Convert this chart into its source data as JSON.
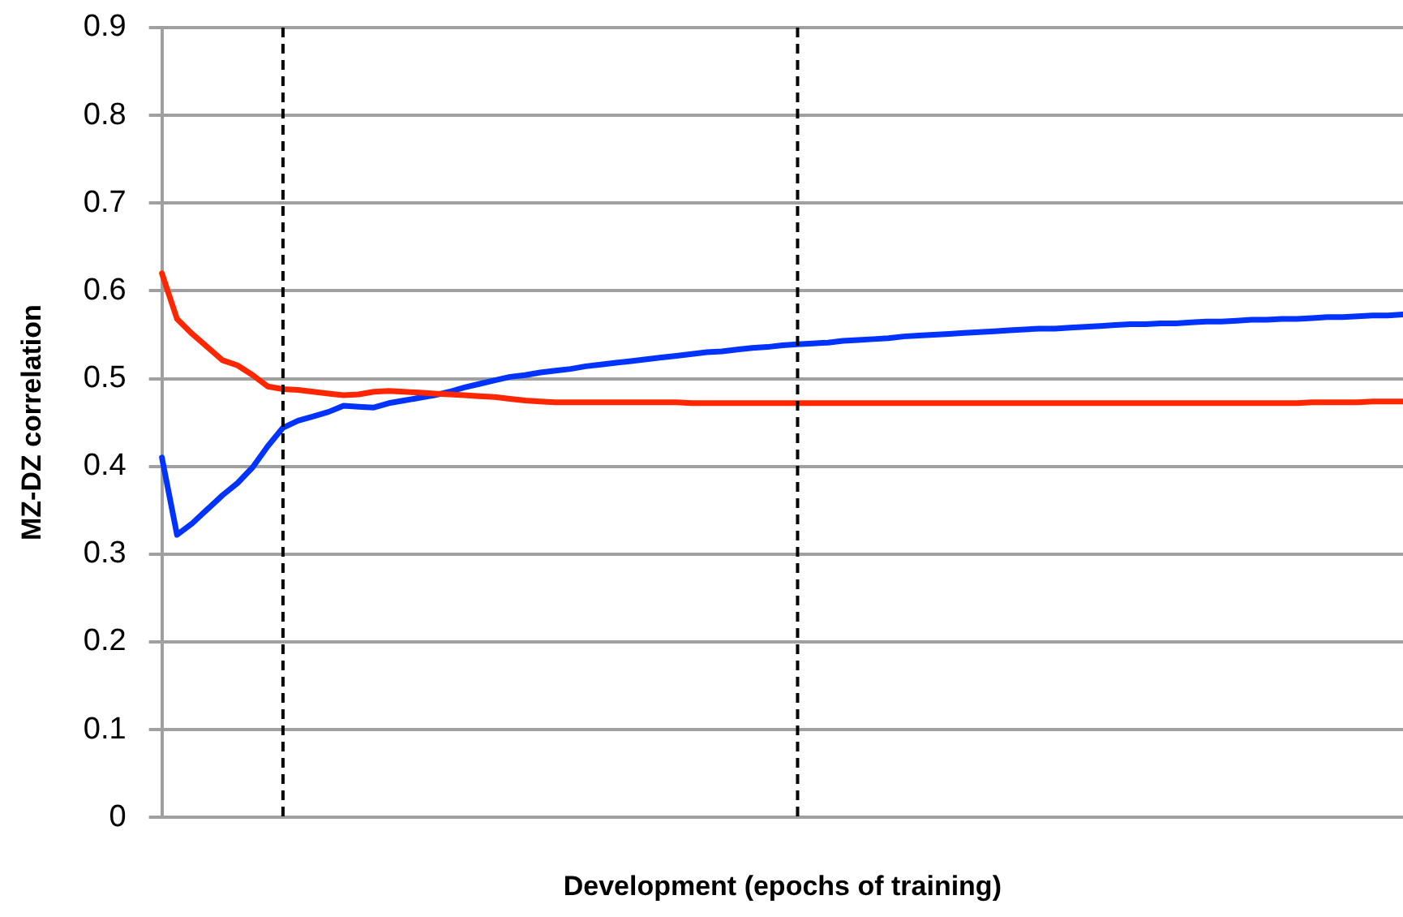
{
  "chart_data": {
    "type": "line",
    "xlabel": "Development (epochs of training)",
    "ylabel": "MZ-DZ correlation",
    "categories": [
      null,
      null,
      null,
      null,
      null,
      null,
      null,
      null,
      null,
      null,
      null,
      null,
      null,
      null,
      null,
      null,
      null,
      null,
      null,
      null,
      null,
      null,
      null,
      null,
      null,
      null,
      null,
      null,
      null,
      null,
      null,
      null,
      null,
      null,
      null,
      null,
      null,
      null,
      null,
      null,
      null,
      null,
      null,
      null,
      null,
      null,
      null,
      null,
      null,
      null,
      null,
      null,
      null,
      null,
      null,
      null,
      null,
      null,
      null,
      null,
      null,
      null,
      null,
      null,
      null,
      null,
      null,
      null,
      null,
      null,
      null,
      null,
      null,
      null,
      null,
      null,
      null,
      null,
      null,
      null,
      null,
      null,
      null
    ],
    "series": [
      {
        "color": "#ff2600",
        "values": [
          0.62,
          0.568,
          0.551,
          0.536,
          0.521,
          0.515,
          0.504,
          0.491,
          0.488,
          0.487,
          0.485,
          0.483,
          0.481,
          0.482,
          0.485,
          0.486,
          0.485,
          0.484,
          0.483,
          0.482,
          0.481,
          0.48,
          0.479,
          0.477,
          0.475,
          0.474,
          0.473,
          0.473,
          0.473,
          0.473,
          0.473,
          0.473,
          0.473,
          0.473,
          0.473,
          0.472,
          0.472,
          0.472,
          0.472,
          0.472,
          0.472,
          0.472,
          0.472,
          0.472,
          0.472,
          0.472,
          0.472,
          0.472,
          0.472,
          0.472,
          0.472,
          0.472,
          0.472,
          0.472,
          0.472,
          0.472,
          0.472,
          0.472,
          0.472,
          0.472,
          0.472,
          0.472,
          0.472,
          0.472,
          0.472,
          0.472,
          0.472,
          0.472,
          0.472,
          0.472,
          0.472,
          0.472,
          0.472,
          0.472,
          0.472,
          0.472,
          0.473,
          0.473,
          0.473,
          0.473,
          0.474,
          0.474,
          0.474
        ]
      },
      {
        "color": "#0033ff",
        "values": [
          0.41,
          0.322,
          0.335,
          0.351,
          0.367,
          0.381,
          0.399,
          0.423,
          0.444,
          0.452,
          0.457,
          0.462,
          0.469,
          0.468,
          0.467,
          0.472,
          0.475,
          0.478,
          0.481,
          0.485,
          0.49,
          0.494,
          0.498,
          0.502,
          0.504,
          0.507,
          0.509,
          0.511,
          0.514,
          0.516,
          0.518,
          0.52,
          0.522,
          0.524,
          0.526,
          0.528,
          0.53,
          0.531,
          0.533,
          0.535,
          0.536,
          0.538,
          0.539,
          0.54,
          0.541,
          0.543,
          0.544,
          0.545,
          0.546,
          0.548,
          0.549,
          0.55,
          0.551,
          0.552,
          0.553,
          0.554,
          0.555,
          0.556,
          0.557,
          0.557,
          0.558,
          0.559,
          0.56,
          0.561,
          0.562,
          0.562,
          0.563,
          0.563,
          0.564,
          0.565,
          0.565,
          0.566,
          0.567,
          0.567,
          0.568,
          0.568,
          0.569,
          0.57,
          0.57,
          0.571,
          0.572,
          0.572,
          0.573
        ]
      }
    ],
    "ylim": [
      0,
      0.9
    ],
    "yticks": [
      0,
      0.1,
      0.2,
      0.3,
      0.4,
      0.5,
      0.6,
      0.7,
      0.8,
      0.9
    ],
    "grid": "y",
    "tick_labels": "y",
    "marker": "none",
    "line_style": "solid"
  }
}
